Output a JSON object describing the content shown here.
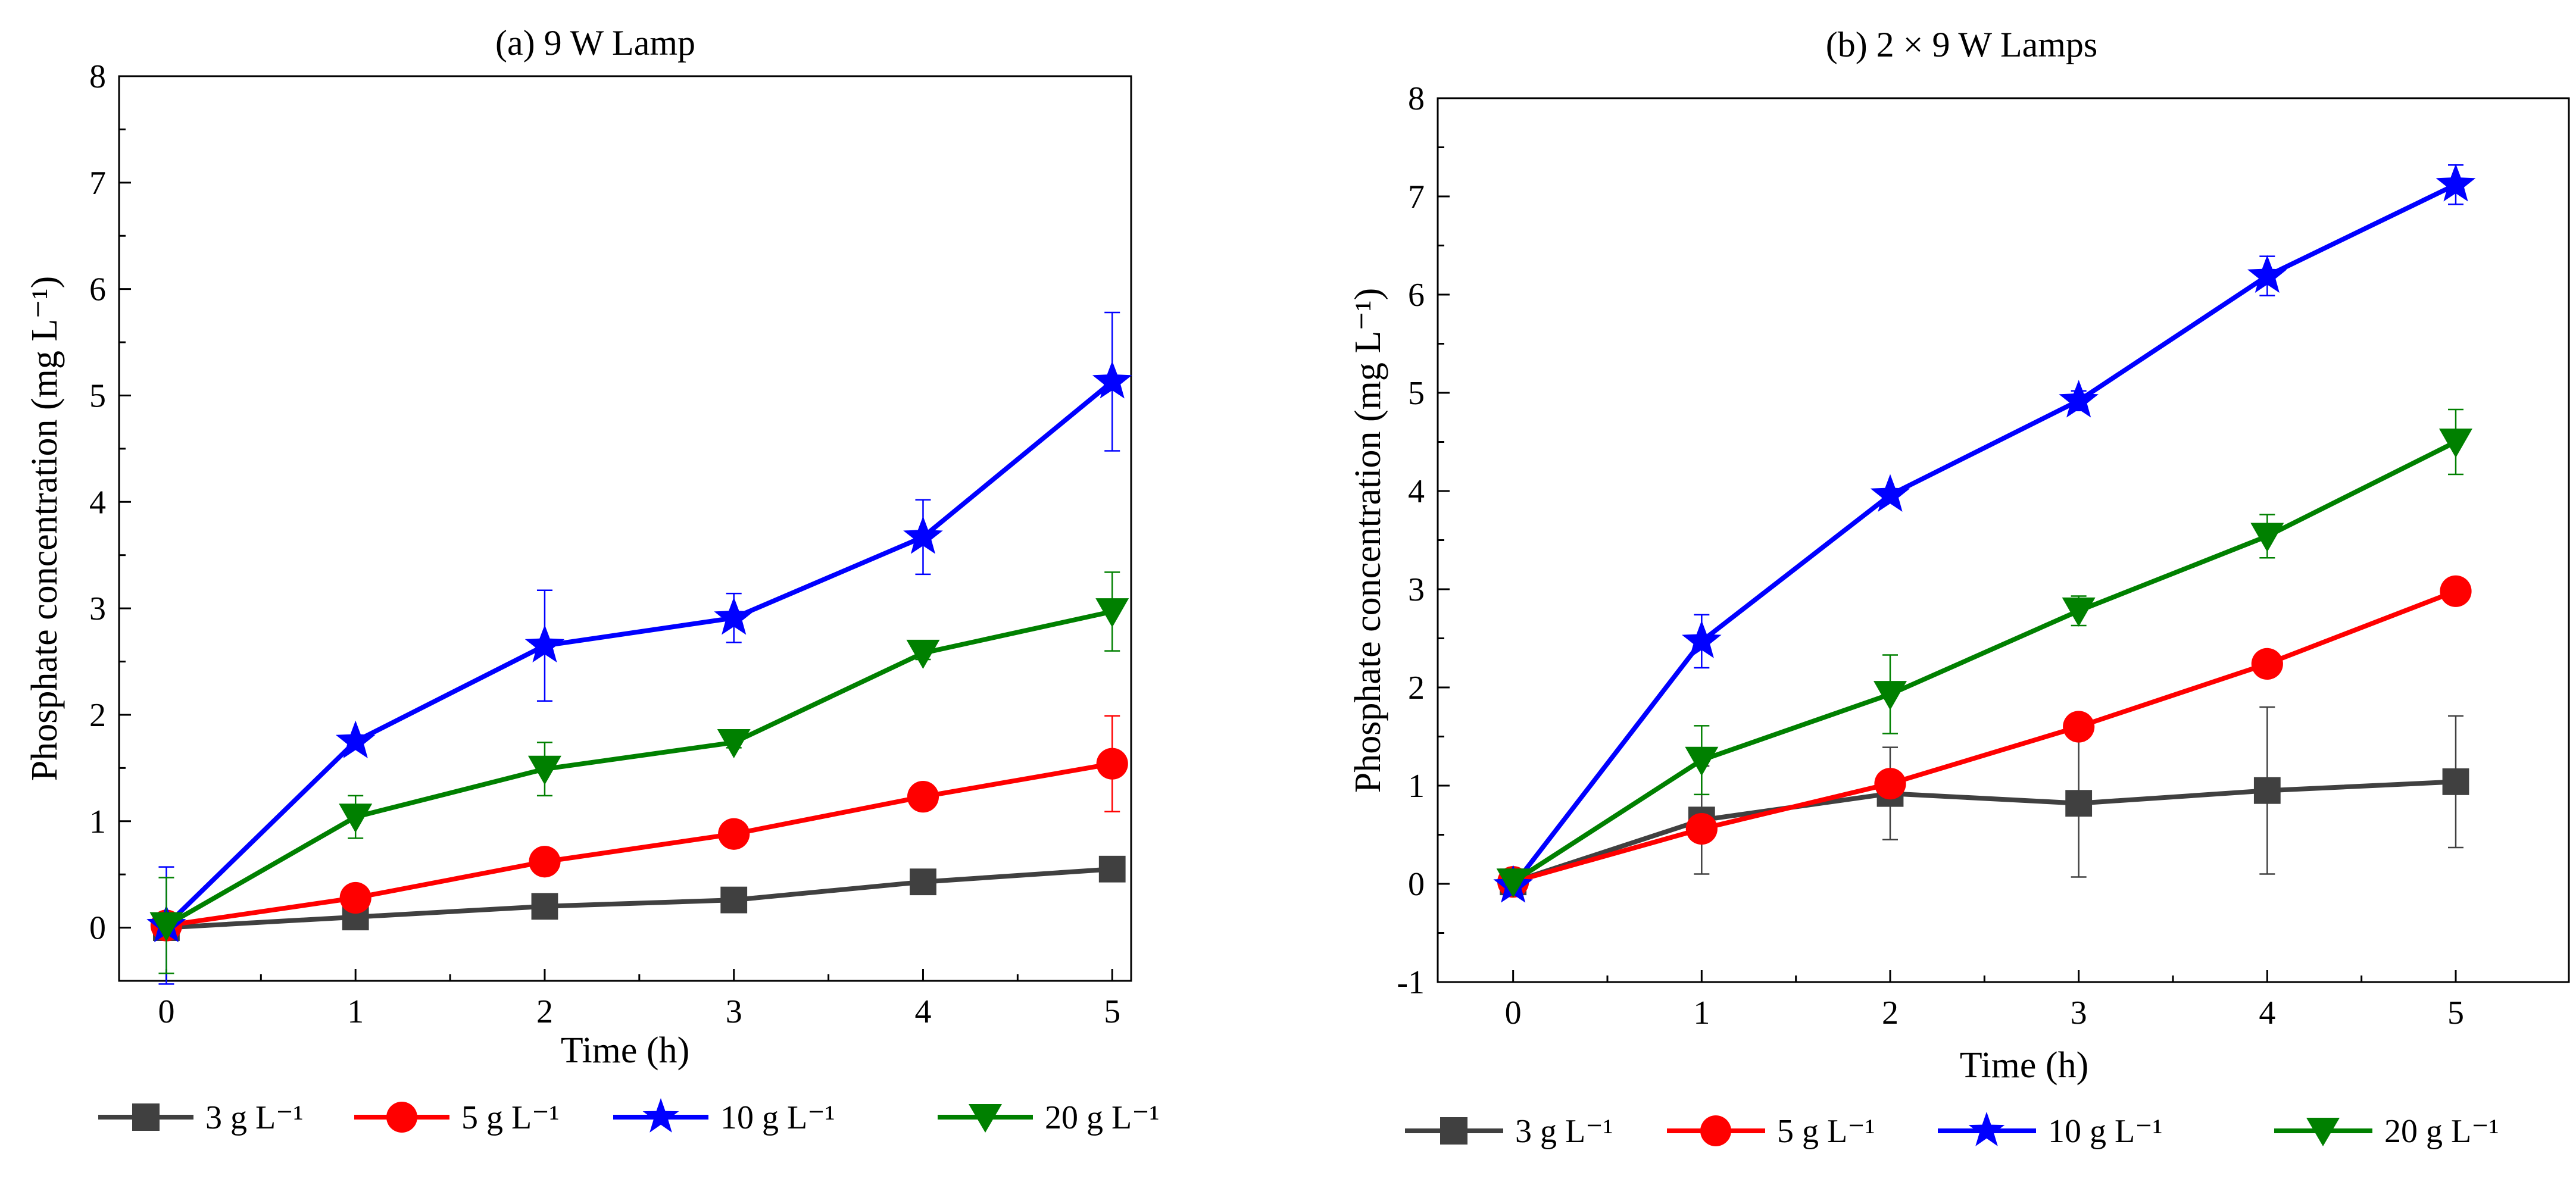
{
  "charts": [
    {
      "id": "a",
      "title": "(a) 9 W Lamp",
      "xlabel": "Time (h)",
      "ylabel": "Phosphate concentration (mg L⁻¹)",
      "xticks": [
        "0",
        "1",
        "2",
        "3",
        "4",
        "5"
      ],
      "yticks": [
        "0",
        "1",
        "2",
        "3",
        "4",
        "5",
        "6",
        "7",
        "8"
      ],
      "xlim": [
        -0.25,
        5.1
      ],
      "ylim": [
        -0.5,
        8
      ],
      "legend": [
        "3 g L⁻¹",
        "5 g L⁻¹",
        "10 g L⁻¹",
        "20 g L⁻¹"
      ]
    },
    {
      "id": "b",
      "title": "(b) 2 × 9 W Lamps",
      "xlabel": "Time (h)",
      "ylabel": "Phosphate concentration (mg L⁻¹)",
      "xticks": [
        "0",
        "1",
        "2",
        "3",
        "4",
        "5"
      ],
      "yticks": [
        "-1",
        "0",
        "1",
        "2",
        "3",
        "4",
        "5",
        "6",
        "7",
        "8"
      ],
      "xlim": [
        -0.4,
        5.6
      ],
      "ylim": [
        -1,
        8
      ],
      "legend": [
        "3 g L⁻¹",
        "5 g L⁻¹",
        "10 g L⁻¹",
        "20 g L⁻¹"
      ]
    }
  ],
  "colors": {
    "s3": "#404040",
    "s5": "#ff0000",
    "s10": "#0000ff",
    "s20": "#008000"
  },
  "chart_data": [
    {
      "type": "line",
      "title": "(a) 9 W Lamp",
      "xlabel": "Time (h)",
      "ylabel": "Phosphate concentration (mg L⁻¹)",
      "x": [
        0,
        1,
        2,
        3,
        4,
        5
      ],
      "xlim": [
        -0.25,
        5.1
      ],
      "ylim": [
        -0.5,
        8
      ],
      "series": [
        {
          "name": "3 g L⁻¹",
          "marker": "square",
          "color": "#404040",
          "values": [
            0,
            0.1,
            0.2,
            0.26,
            0.43,
            0.55
          ],
          "errors": [
            0.02,
            0.03,
            0.03,
            0.03,
            0.05,
            0.05
          ]
        },
        {
          "name": "5 g L⁻¹",
          "marker": "circle",
          "color": "#ff0000",
          "values": [
            0.02,
            0.28,
            0.62,
            0.88,
            1.23,
            1.54
          ],
          "errors": [
            0.02,
            0.05,
            0.05,
            0.05,
            0.1,
            0.45
          ]
        },
        {
          "name": "10 g L⁻¹",
          "marker": "star",
          "color": "#0000ff",
          "values": [
            0.02,
            1.75,
            2.65,
            2.91,
            3.67,
            5.13
          ],
          "errors": [
            0.55,
            0.05,
            0.52,
            0.23,
            0.35,
            0.65
          ]
        },
        {
          "name": "20 g L⁻¹",
          "marker": "triangle-down",
          "color": "#008000",
          "values": [
            0.02,
            1.04,
            1.49,
            1.74,
            2.58,
            2.97
          ],
          "errors": [
            0.45,
            0.2,
            0.25,
            0.05,
            0.06,
            0.37
          ]
        }
      ]
    },
    {
      "type": "line",
      "title": "(b) 2 × 9 W Lamps",
      "xlabel": "Time (h)",
      "ylabel": "Phosphate concentration (mg L⁻¹)",
      "x": [
        0,
        1,
        2,
        3,
        4,
        5
      ],
      "xlim": [
        -0.4,
        5.6
      ],
      "ylim": [
        -1,
        8
      ],
      "series": [
        {
          "name": "3 g L⁻¹",
          "marker": "square",
          "color": "#404040",
          "values": [
            0.02,
            0.65,
            0.92,
            0.82,
            0.95,
            1.04
          ],
          "errors": [
            0.05,
            0.55,
            0.47,
            0.75,
            0.85,
            0.67
          ]
        },
        {
          "name": "5 g L⁻¹",
          "marker": "circle",
          "color": "#ff0000",
          "values": [
            0.02,
            0.56,
            1.02,
            1.6,
            2.24,
            2.98
          ],
          "errors": [
            0.03,
            0.05,
            0.05,
            0.05,
            0.05,
            0.05
          ]
        },
        {
          "name": "10 g L⁻¹",
          "marker": "star",
          "color": "#0000ff",
          "values": [
            -0.02,
            2.47,
            3.96,
            4.92,
            6.19,
            7.12
          ],
          "errors": [
            0.05,
            0.27,
            0.05,
            0.1,
            0.2,
            0.2
          ]
        },
        {
          "name": "20 g L⁻¹",
          "marker": "triangle-down",
          "color": "#008000",
          "values": [
            0.02,
            1.26,
            1.93,
            2.78,
            3.54,
            4.5
          ],
          "errors": [
            0.03,
            0.35,
            0.4,
            0.15,
            0.22,
            0.33
          ]
        }
      ]
    }
  ]
}
